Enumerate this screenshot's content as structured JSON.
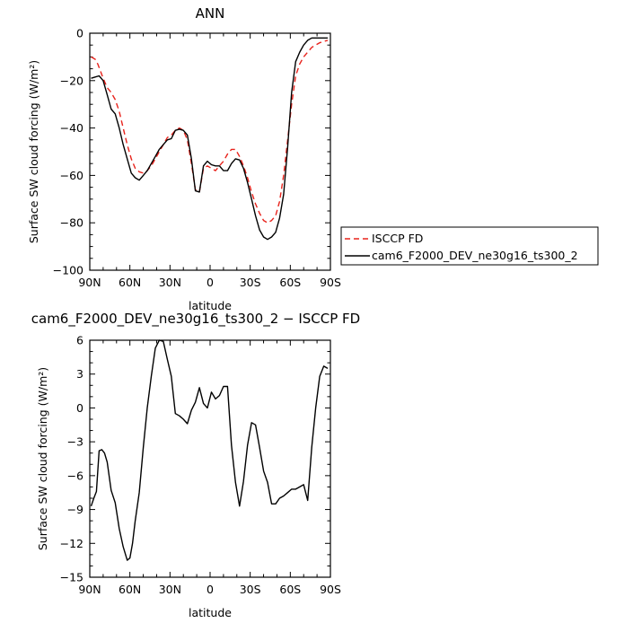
{
  "chart_data": [
    {
      "type": "line",
      "title": "ANN",
      "xlabel": "latitude",
      "ylabel": "Surface SW cloud forcing (W/m²)",
      "xlim": [
        -90,
        90
      ],
      "ylim": [
        -100,
        0
      ],
      "xticks": [
        -90,
        -60,
        -30,
        0,
        30,
        60,
        90
      ],
      "xtick_labels": [
        "90N",
        "60N",
        "30N",
        "0",
        "30S",
        "60S",
        "90S"
      ],
      "yticks": [
        0,
        -20,
        -40,
        -60,
        -80,
        -100
      ],
      "ytick_labels": [
        "0",
        "−20",
        "−40",
        "−60",
        "−80",
        "−100"
      ],
      "legend": "right",
      "grid": false,
      "series": [
        {
          "name": "ISCCP FD",
          "color": "#e8231c",
          "dash": "dashed",
          "x": [
            -89,
            -86,
            -84,
            -82,
            -80,
            -77,
            -74,
            -71,
            -68,
            -65,
            -62,
            -59,
            -56,
            -53,
            -50,
            -47,
            -44,
            -41,
            -38,
            -35,
            -32,
            -29,
            -26,
            -23,
            -20,
            -17,
            -14,
            -11,
            -8,
            -5,
            -2,
            1,
            4,
            7,
            10,
            13,
            16,
            19,
            22,
            25,
            28,
            31,
            34,
            37,
            40,
            43,
            46,
            49,
            52,
            55,
            58,
            61,
            64,
            67,
            70,
            73,
            76,
            79,
            82,
            85,
            88
          ],
          "y": [
            -10,
            -11,
            -13,
            -16,
            -19,
            -23,
            -25,
            -28,
            -33,
            -40,
            -47,
            -53,
            -57,
            -58.5,
            -59,
            -58,
            -56,
            -53,
            -50,
            -47,
            -44,
            -43,
            -41,
            -40,
            -41,
            -45,
            -55,
            -66,
            -67,
            -57,
            -56,
            -57,
            -58,
            -56,
            -54,
            -51,
            -49,
            -49,
            -52,
            -56,
            -61,
            -67,
            -72,
            -76,
            -79,
            -80,
            -79,
            -77,
            -71,
            -60,
            -45,
            -30,
            -18,
            -13,
            -10,
            -8,
            -6,
            -5,
            -4,
            -3.5,
            -3
          ]
        },
        {
          "name": "cam6_F2000_DEV_ne30g16_ts300_2",
          "color": "#000000",
          "dash": "solid",
          "x": [
            -89,
            -86,
            -83,
            -80,
            -77,
            -74,
            -71,
            -68,
            -65,
            -62,
            -59,
            -56,
            -53,
            -50,
            -47,
            -44,
            -41,
            -38,
            -35,
            -32,
            -29,
            -26,
            -23,
            -20,
            -17,
            -14,
            -11,
            -8,
            -5,
            -2,
            1,
            4,
            7,
            10,
            13,
            16,
            19,
            22,
            25,
            28,
            31,
            34,
            37,
            40,
            43,
            46,
            49,
            52,
            55,
            58,
            61,
            64,
            67,
            70,
            73,
            76,
            79,
            82,
            85,
            88
          ],
          "y": [
            -19,
            -18.5,
            -18,
            -20,
            -26,
            -32,
            -34,
            -40,
            -47,
            -53,
            -59,
            -61,
            -62,
            -60,
            -58,
            -55,
            -52,
            -49,
            -47,
            -45,
            -44.5,
            -41,
            -40.5,
            -41,
            -43,
            -53,
            -66.5,
            -67,
            -56,
            -54,
            -55.5,
            -56,
            -56,
            -58,
            -58,
            -55,
            -53,
            -53.5,
            -57,
            -63,
            -70,
            -77,
            -83,
            -86,
            -87,
            -86,
            -84,
            -78,
            -68,
            -48,
            -25,
            -12,
            -8,
            -5,
            -3,
            -2,
            -2,
            -2,
            -2,
            -2
          ]
        }
      ]
    },
    {
      "type": "line",
      "title": "cam6_F2000_DEV_ne30g16_ts300_2 − ISCCP FD",
      "xlabel": "latitude",
      "ylabel": "Surface SW cloud forcing (W/m²)",
      "xlim": [
        -90,
        90
      ],
      "ylim": [
        -15,
        6
      ],
      "xticks": [
        -90,
        -60,
        -30,
        0,
        30,
        60,
        90
      ],
      "xtick_labels": [
        "90N",
        "60N",
        "30N",
        "0",
        "30S",
        "60S",
        "90S"
      ],
      "yticks": [
        6,
        3,
        0,
        -3,
        -6,
        -9,
        -12,
        -15
      ],
      "ytick_labels": [
        "6",
        "3",
        "0",
        "−3",
        "−6",
        "−9",
        "−12",
        "−15"
      ],
      "grid": false,
      "series": [
        {
          "color": "#000000",
          "dash": "solid",
          "x": [
            -89,
            -87,
            -85,
            -83,
            -81,
            -79,
            -77,
            -74,
            -71,
            -68,
            -65,
            -62,
            -60,
            -58,
            -56,
            -53,
            -50,
            -47,
            -44,
            -41,
            -38,
            -35,
            -32,
            -29,
            -26,
            -23,
            -20,
            -17,
            -14,
            -11,
            -8,
            -5,
            -2,
            1,
            4,
            7,
            10,
            13,
            16,
            19,
            22,
            25,
            28,
            31,
            34,
            37,
            40,
            43,
            46,
            49,
            52,
            55,
            58,
            61,
            64,
            67,
            70,
            73,
            76,
            79,
            82,
            85,
            88
          ],
          "y": [
            -8.7,
            -8,
            -7.4,
            -3.8,
            -3.7,
            -4,
            -4.8,
            -7.3,
            -8.4,
            -10.7,
            -12.3,
            -13.5,
            -13.3,
            -12,
            -10,
            -7.5,
            -3.5,
            0,
            2.8,
            5.3,
            6,
            5.9,
            4.3,
            2.8,
            -0.5,
            -0.7,
            -1,
            -1.4,
            -0.2,
            0.5,
            1.8,
            0.4,
            0,
            1.4,
            0.8,
            1.1,
            1.9,
            1.9,
            -3.3,
            -6.6,
            -8.7,
            -6.5,
            -3.3,
            -1.3,
            -1.5,
            -3.5,
            -5.6,
            -6.6,
            -8.5,
            -8.5,
            -8,
            -7.8,
            -7.5,
            -7.2,
            -7.2,
            -7,
            -6.8,
            -8.2,
            -3.5,
            0,
            2.8,
            3.7,
            3.5
          ]
        }
      ]
    }
  ]
}
